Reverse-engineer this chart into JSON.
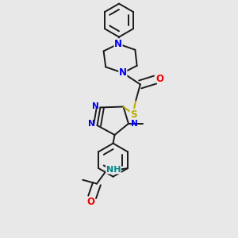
{
  "bg_color": "#e8e8e8",
  "bond_color": "#1a1a1a",
  "n_color": "#0000ee",
  "o_color": "#ee0000",
  "s_color": "#bbaa00",
  "nh_color": "#008888",
  "lw": 1.4,
  "fs": 8.5,
  "xlim": [
    0.15,
    0.85
  ],
  "ylim": [
    0.05,
    0.97
  ]
}
